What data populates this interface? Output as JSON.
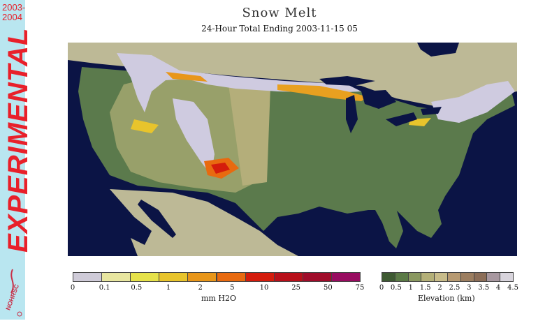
{
  "header": {
    "title": "Snow Melt",
    "subtitle": "24-Hour Total Ending 2003-11-15 05"
  },
  "sidebar": {
    "season_top": "2003-",
    "season_bottom": "2004",
    "banner": "EXPERIMENTAL",
    "logo_text": "NOHRSC",
    "colors": {
      "background": "#b9e6f0",
      "text": "#e8202a"
    }
  },
  "map": {
    "region": "Contiguous United States",
    "legend_melt_areas": "orange-red highlights over Rockies, Great Lakes, New Mexico",
    "colors": {
      "ocean": "#0b1445",
      "lowland": "#5b7a4c",
      "snow": "#cfcbe0",
      "foreign_land": "#bdb996"
    }
  },
  "melt_legend": {
    "unit": "mm H2O",
    "ticks": [
      "0",
      "0.1",
      "0.5",
      "1",
      "2",
      "5",
      "10",
      "25",
      "50",
      "75"
    ],
    "colors": [
      "#cfcbd8",
      "#e8e6a0",
      "#e6e24a",
      "#e8c42c",
      "#e8961a",
      "#e86a10",
      "#d41c0c",
      "#b8101a",
      "#a00c2a",
      "#980c60"
    ]
  },
  "elevation_legend": {
    "unit": "Elevation (km)",
    "ticks": [
      "0",
      "0.5",
      "1",
      "1.5",
      "2",
      "2.5",
      "3",
      "3.5",
      "4",
      "4.5"
    ],
    "colors": [
      "#3e5a32",
      "#5b7a46",
      "#8a9860",
      "#b4b078",
      "#c8bc8a",
      "#b79a72",
      "#9c7e60",
      "#8c6e58",
      "#a898a0",
      "#d8d4dc"
    ]
  }
}
